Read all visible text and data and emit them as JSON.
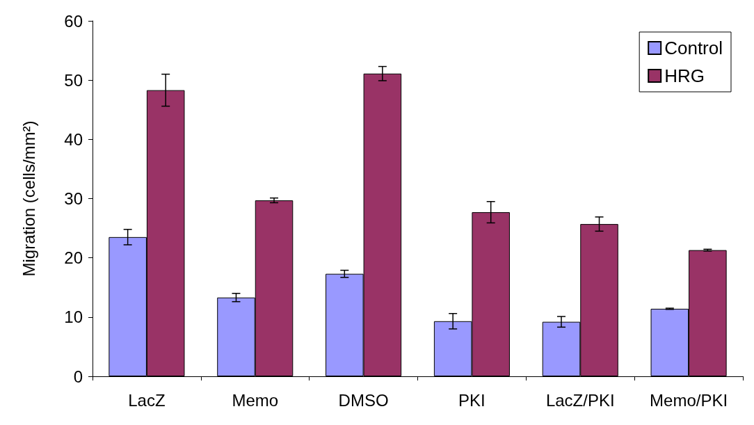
{
  "chart_data": {
    "type": "bar",
    "ylabel": "Migration (cells/mm²)",
    "categories": [
      "LacZ",
      "Memo",
      "DMSO",
      "PKI",
      "LacZ/PKI",
      "Memo/PKI"
    ],
    "series": [
      {
        "name": "Control",
        "color": "#9999ff",
        "values": [
          23.5,
          13.3,
          17.3,
          9.3,
          9.2,
          11.4
        ],
        "errors": [
          1.3,
          0.7,
          0.6,
          1.3,
          0.9,
          0.1
        ]
      },
      {
        "name": "HRG",
        "color": "#993366",
        "values": [
          48.3,
          29.7,
          51.1,
          27.7,
          25.7,
          21.3
        ],
        "errors": [
          2.7,
          0.4,
          1.2,
          1.8,
          1.2,
          0.15
        ]
      }
    ],
    "ylim": [
      0,
      60
    ],
    "yticks": [
      0,
      10,
      20,
      30,
      40,
      50,
      60
    ],
    "grid": false,
    "legend": "top right"
  }
}
